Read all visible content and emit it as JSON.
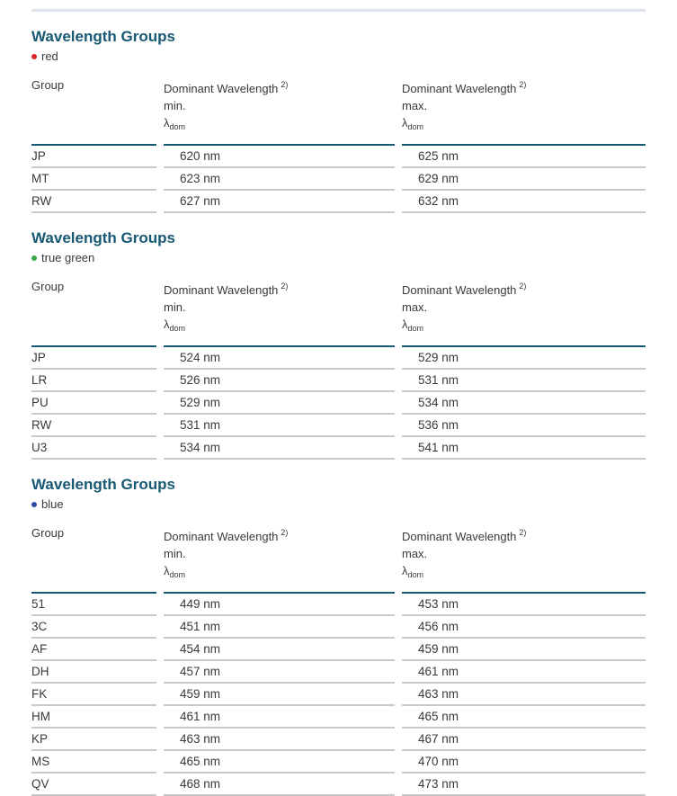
{
  "colors": {
    "heading": "#175873",
    "header_rule": "#175873",
    "row_line": "#c9c9c9",
    "top_divider": "#dde3ea",
    "text": "#3a3a3a"
  },
  "table_header": {
    "group_label": "Group",
    "wavelength_label": "Dominant Wavelength",
    "footnote_sup": "2)",
    "min_label": "min.",
    "max_label": "max.",
    "lambda_symbol": "λ",
    "lambda_subscript": "dom"
  },
  "sections": [
    {
      "title": "Wavelength Groups",
      "legend": {
        "label": "red",
        "color": "#d9252c"
      },
      "rows": [
        {
          "group": "JP",
          "min": "620 nm",
          "max": "625 nm"
        },
        {
          "group": "MT",
          "min": "623 nm",
          "max": "629 nm"
        },
        {
          "group": "RW",
          "min": "627 nm",
          "max": "632 nm"
        }
      ]
    },
    {
      "title": "Wavelength Groups",
      "legend": {
        "label": "true green",
        "color": "#3fa847"
      },
      "rows": [
        {
          "group": "JP",
          "min": "524 nm",
          "max": "529 nm"
        },
        {
          "group": "LR",
          "min": "526 nm",
          "max": "531 nm"
        },
        {
          "group": "PU",
          "min": "529 nm",
          "max": "534 nm"
        },
        {
          "group": "RW",
          "min": "531 nm",
          "max": "536 nm"
        },
        {
          "group": "U3",
          "min": "534 nm",
          "max": "541 nm"
        }
      ]
    },
    {
      "title": "Wavelength Groups",
      "legend": {
        "label": "blue",
        "color": "#2b4ea0"
      },
      "rows": [
        {
          "group": "51",
          "min": "449 nm",
          "max": "453 nm"
        },
        {
          "group": "3C",
          "min": "451 nm",
          "max": "456 nm"
        },
        {
          "group": "AF",
          "min": "454 nm",
          "max": "459 nm"
        },
        {
          "group": "DH",
          "min": "457 nm",
          "max": "461 nm"
        },
        {
          "group": "FK",
          "min": "459 nm",
          "max": "463 nm"
        },
        {
          "group": "HM",
          "min": "461 nm",
          "max": "465 nm"
        },
        {
          "group": "KP",
          "min": "463 nm",
          "max": "467 nm"
        },
        {
          "group": "MS",
          "min": "465 nm",
          "max": "470 nm"
        },
        {
          "group": "QV",
          "min": "468 nm",
          "max": "473 nm"
        }
      ]
    }
  ]
}
